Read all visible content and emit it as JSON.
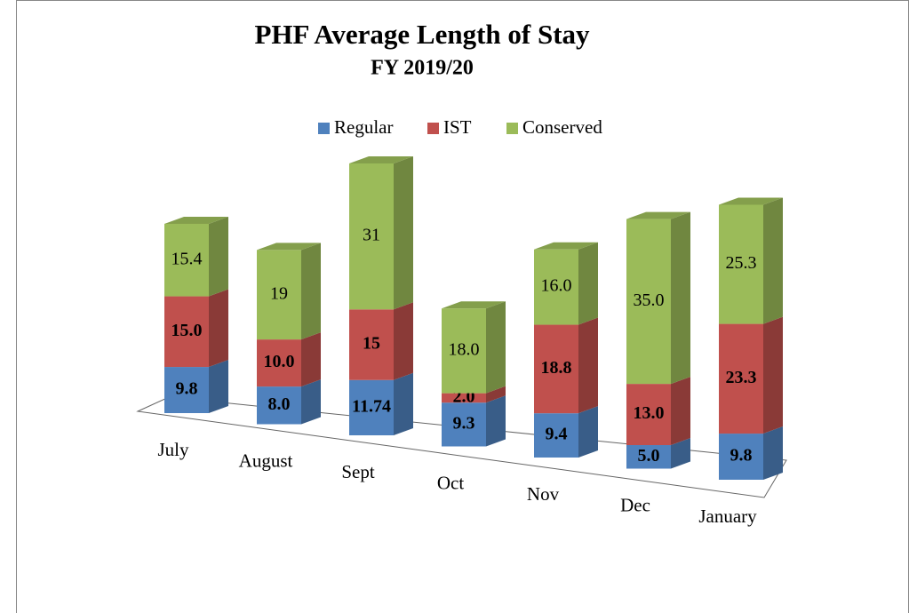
{
  "chart_data": {
    "type": "bar3d_stacked",
    "title": "PHF Average Length of Stay",
    "subtitle": "FY 2019/20",
    "categories": [
      "July",
      "August",
      "Sept",
      "Oct",
      "Nov",
      "Dec",
      "January"
    ],
    "legend": "top",
    "series": [
      {
        "name": "Regular",
        "color": "#4f81bd",
        "bold": true,
        "values": [
          9.8,
          8.0,
          11.74,
          9.3,
          9.4,
          5.0,
          9.8
        ],
        "value_labels": [
          "9.8",
          "8.0",
          "11.74",
          "9.3",
          "9.4",
          "5.0",
          "9.8"
        ]
      },
      {
        "name": "IST",
        "color": "#c0504d",
        "bold": true,
        "values": [
          15.0,
          10.0,
          15,
          2.0,
          18.8,
          13.0,
          23.3
        ],
        "value_labels": [
          "15.0",
          "10.0",
          "15",
          "2.0",
          "18.8",
          "13.0",
          "23.3"
        ]
      },
      {
        "name": "Conserved",
        "color": "#9bbb59",
        "bold": false,
        "values": [
          15.4,
          19,
          31,
          18.0,
          16.0,
          35.0,
          25.3
        ],
        "value_labels": [
          "15.4",
          "19",
          "31",
          "18.0",
          "16.0",
          "35.0",
          "25.3"
        ]
      }
    ]
  }
}
